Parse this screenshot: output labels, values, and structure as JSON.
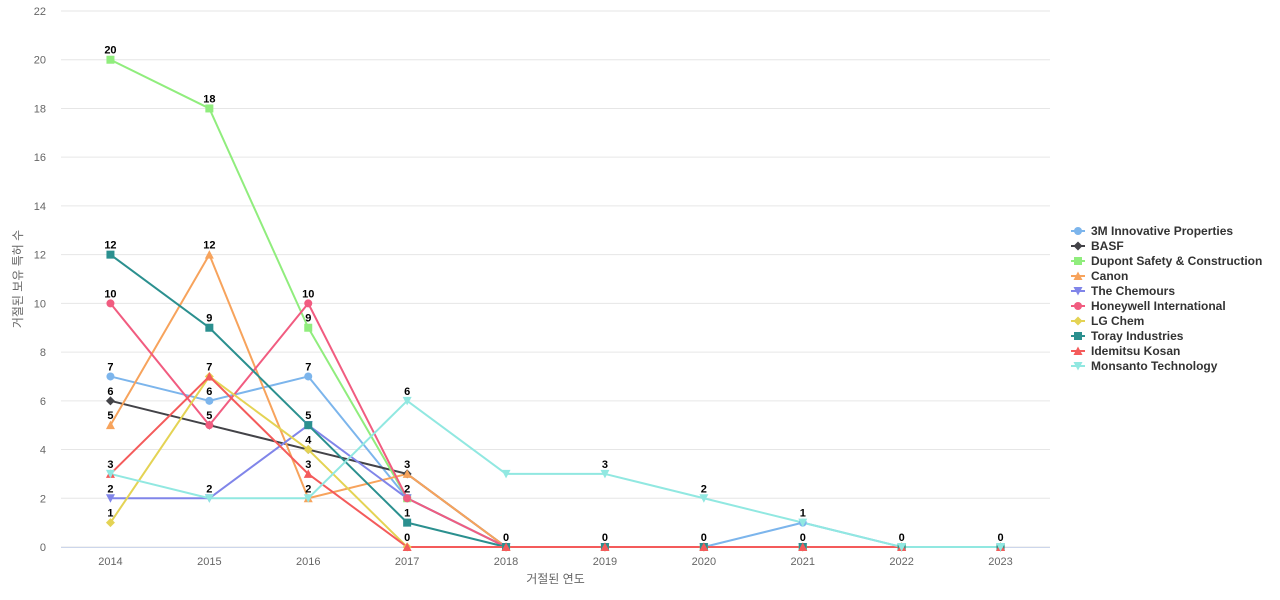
{
  "chart_data": {
    "type": "line",
    "title": "",
    "xlabel": "거절된 연도",
    "ylabel": "거절된 보유 특허 수",
    "ylim": [
      0,
      22
    ],
    "y_ticks": [
      0,
      2,
      4,
      6,
      8,
      10,
      12,
      14,
      16,
      18,
      20,
      22
    ],
    "categories": [
      "2014",
      "2015",
      "2016",
      "2017",
      "2018",
      "2019",
      "2020",
      "2021",
      "2022",
      "2023"
    ],
    "grid": true,
    "legend_position": "right",
    "series": [
      {
        "name": "3M Innovative Properties",
        "color": "#7cb5ec",
        "marker": "circle",
        "values": [
          7,
          6,
          7,
          2,
          0,
          0,
          0,
          1,
          0,
          0
        ]
      },
      {
        "name": "BASF",
        "color": "#434348",
        "marker": "diamond",
        "values": [
          6,
          5,
          4,
          3,
          0,
          0,
          0,
          0,
          0,
          0
        ]
      },
      {
        "name": "Dupont Safety & Construction",
        "color": "#90ed7d",
        "marker": "square",
        "values": [
          20,
          18,
          9,
          2,
          0,
          0,
          0,
          0,
          0,
          0
        ]
      },
      {
        "name": "Canon",
        "color": "#f7a35c",
        "marker": "triangle",
        "values": [
          5,
          12,
          2,
          3,
          0,
          0,
          0,
          0,
          0,
          0
        ]
      },
      {
        "name": "The Chemours",
        "color": "#8085e9",
        "marker": "triangle-down",
        "values": [
          2,
          2,
          5,
          2,
          0,
          0,
          0,
          0,
          0,
          0
        ]
      },
      {
        "name": "Honeywell International",
        "color": "#f15c80",
        "marker": "circle",
        "values": [
          10,
          5,
          10,
          2,
          0,
          0,
          0,
          0,
          0,
          0
        ]
      },
      {
        "name": "LG Chem",
        "color": "#e4d354",
        "marker": "diamond",
        "values": [
          1,
          7,
          4,
          0,
          0,
          0,
          0,
          0,
          0,
          0
        ]
      },
      {
        "name": "Toray Industries",
        "color": "#2b908f",
        "marker": "square",
        "values": [
          12,
          9,
          5,
          1,
          0,
          0,
          0,
          0,
          0,
          0
        ]
      },
      {
        "name": "Idemitsu Kosan",
        "color": "#f45b5b",
        "marker": "triangle",
        "values": [
          3,
          7,
          3,
          0,
          0,
          0,
          0,
          0,
          0,
          0
        ]
      },
      {
        "name": "Monsanto Technology",
        "color": "#91e8e1",
        "marker": "triangle-down",
        "values": [
          3,
          2,
          2,
          6,
          3,
          3,
          2,
          1,
          0,
          0
        ]
      }
    ],
    "data_labels": [
      {
        "x": "2014",
        "y": 20,
        "text": "20"
      },
      {
        "x": "2014",
        "y": 12,
        "text": "12"
      },
      {
        "x": "2014",
        "y": 10,
        "text": "10"
      },
      {
        "x": "2014",
        "y": 7,
        "text": "7"
      },
      {
        "x": "2014",
        "y": 6,
        "text": "6"
      },
      {
        "x": "2014",
        "y": 5,
        "text": "5"
      },
      {
        "x": "2014",
        "y": 3,
        "text": "3"
      },
      {
        "x": "2014",
        "y": 2,
        "text": "2"
      },
      {
        "x": "2014",
        "y": 1,
        "text": "1"
      },
      {
        "x": "2015",
        "y": 18,
        "text": "18"
      },
      {
        "x": "2015",
        "y": 12,
        "text": "12"
      },
      {
        "x": "2015",
        "y": 9,
        "text": "9"
      },
      {
        "x": "2015",
        "y": 7,
        "text": "7"
      },
      {
        "x": "2015",
        "y": 6,
        "text": "6"
      },
      {
        "x": "2015",
        "y": 5,
        "text": "5"
      },
      {
        "x": "2015",
        "y": 2,
        "text": "2"
      },
      {
        "x": "2016",
        "y": 10,
        "text": "10"
      },
      {
        "x": "2016",
        "y": 9,
        "text": "9"
      },
      {
        "x": "2016",
        "y": 7,
        "text": "7"
      },
      {
        "x": "2016",
        "y": 5,
        "text": "5"
      },
      {
        "x": "2016",
        "y": 4,
        "text": "4"
      },
      {
        "x": "2016",
        "y": 3,
        "text": "3"
      },
      {
        "x": "2016",
        "y": 2,
        "text": "2"
      },
      {
        "x": "2017",
        "y": 6,
        "text": "6"
      },
      {
        "x": "2017",
        "y": 3,
        "text": "3"
      },
      {
        "x": "2017",
        "y": 2,
        "text": "2"
      },
      {
        "x": "2017",
        "y": 1,
        "text": "1"
      },
      {
        "x": "2017",
        "y": 0,
        "text": "0"
      },
      {
        "x": "2018",
        "y": 0,
        "text": "0"
      },
      {
        "x": "2019",
        "y": 3,
        "text": "3"
      },
      {
        "x": "2019",
        "y": 0,
        "text": "0"
      },
      {
        "x": "2020",
        "y": 2,
        "text": "2"
      },
      {
        "x": "2020",
        "y": 0,
        "text": "0"
      },
      {
        "x": "2021",
        "y": 1,
        "text": "1"
      },
      {
        "x": "2021",
        "y": 0,
        "text": "0"
      },
      {
        "x": "2022",
        "y": 0,
        "text": "0"
      },
      {
        "x": "2023",
        "y": 0,
        "text": "0"
      }
    ],
    "extra_labels": [
      {
        "x": "2018",
        "y": 3,
        "text": "3"
      }
    ]
  }
}
